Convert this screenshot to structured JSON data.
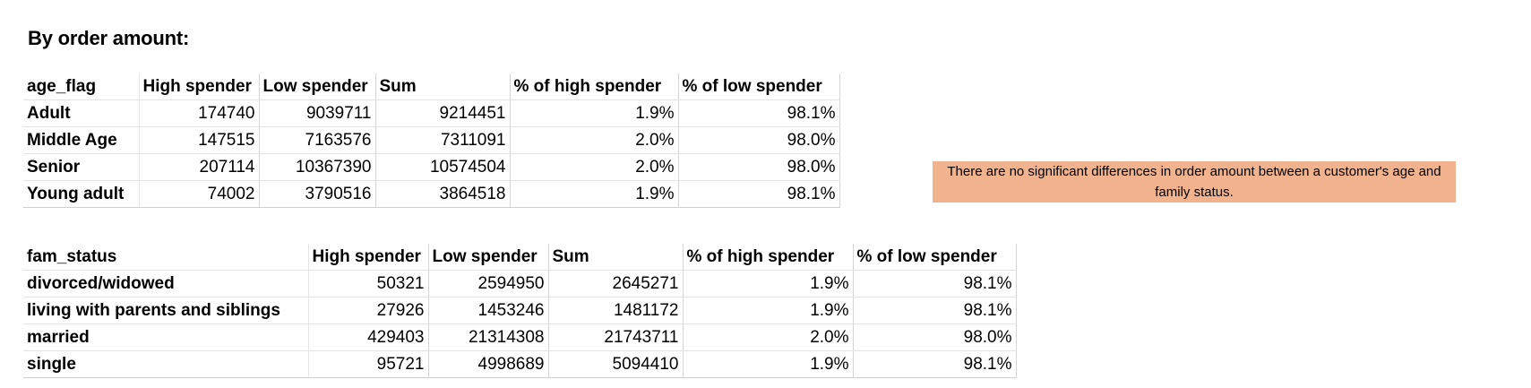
{
  "heading": "By order amount:",
  "table_age": {
    "headers": [
      "age_flag",
      "High spender",
      "Low spender",
      "Sum",
      "% of high spender",
      "% of low spender"
    ],
    "rows": [
      [
        "Adult",
        "174740",
        "9039711",
        "9214451",
        "1.9%",
        "98.1%"
      ],
      [
        "Middle Age",
        "147515",
        "7163576",
        "7311091",
        "2.0%",
        "98.0%"
      ],
      [
        "Senior",
        "207114",
        "10367390",
        "10574504",
        "2.0%",
        "98.0%"
      ],
      [
        "Young adult",
        "74002",
        "3790516",
        "3864518",
        "1.9%",
        "98.1%"
      ]
    ]
  },
  "table_fam": {
    "headers": [
      "fam_status",
      "High spender",
      "Low spender",
      "Sum",
      "% of high spender",
      "% of low spender"
    ],
    "rows": [
      [
        "divorced/widowed",
        "50321",
        "2594950",
        "2645271",
        "1.9%",
        "98.1%"
      ],
      [
        "living with parents and siblings",
        "27926",
        "1453246",
        "1481172",
        "1.9%",
        "98.1%"
      ],
      [
        "married",
        "429403",
        "21314308",
        "21743711",
        "2.0%",
        "98.0%"
      ],
      [
        "single",
        "95721",
        "4998689",
        "5094410",
        "1.9%",
        "98.1%"
      ]
    ]
  },
  "note": {
    "text": "There are no significant differences in order amount between a customer's age and family status.",
    "background": "#f0b38e"
  }
}
